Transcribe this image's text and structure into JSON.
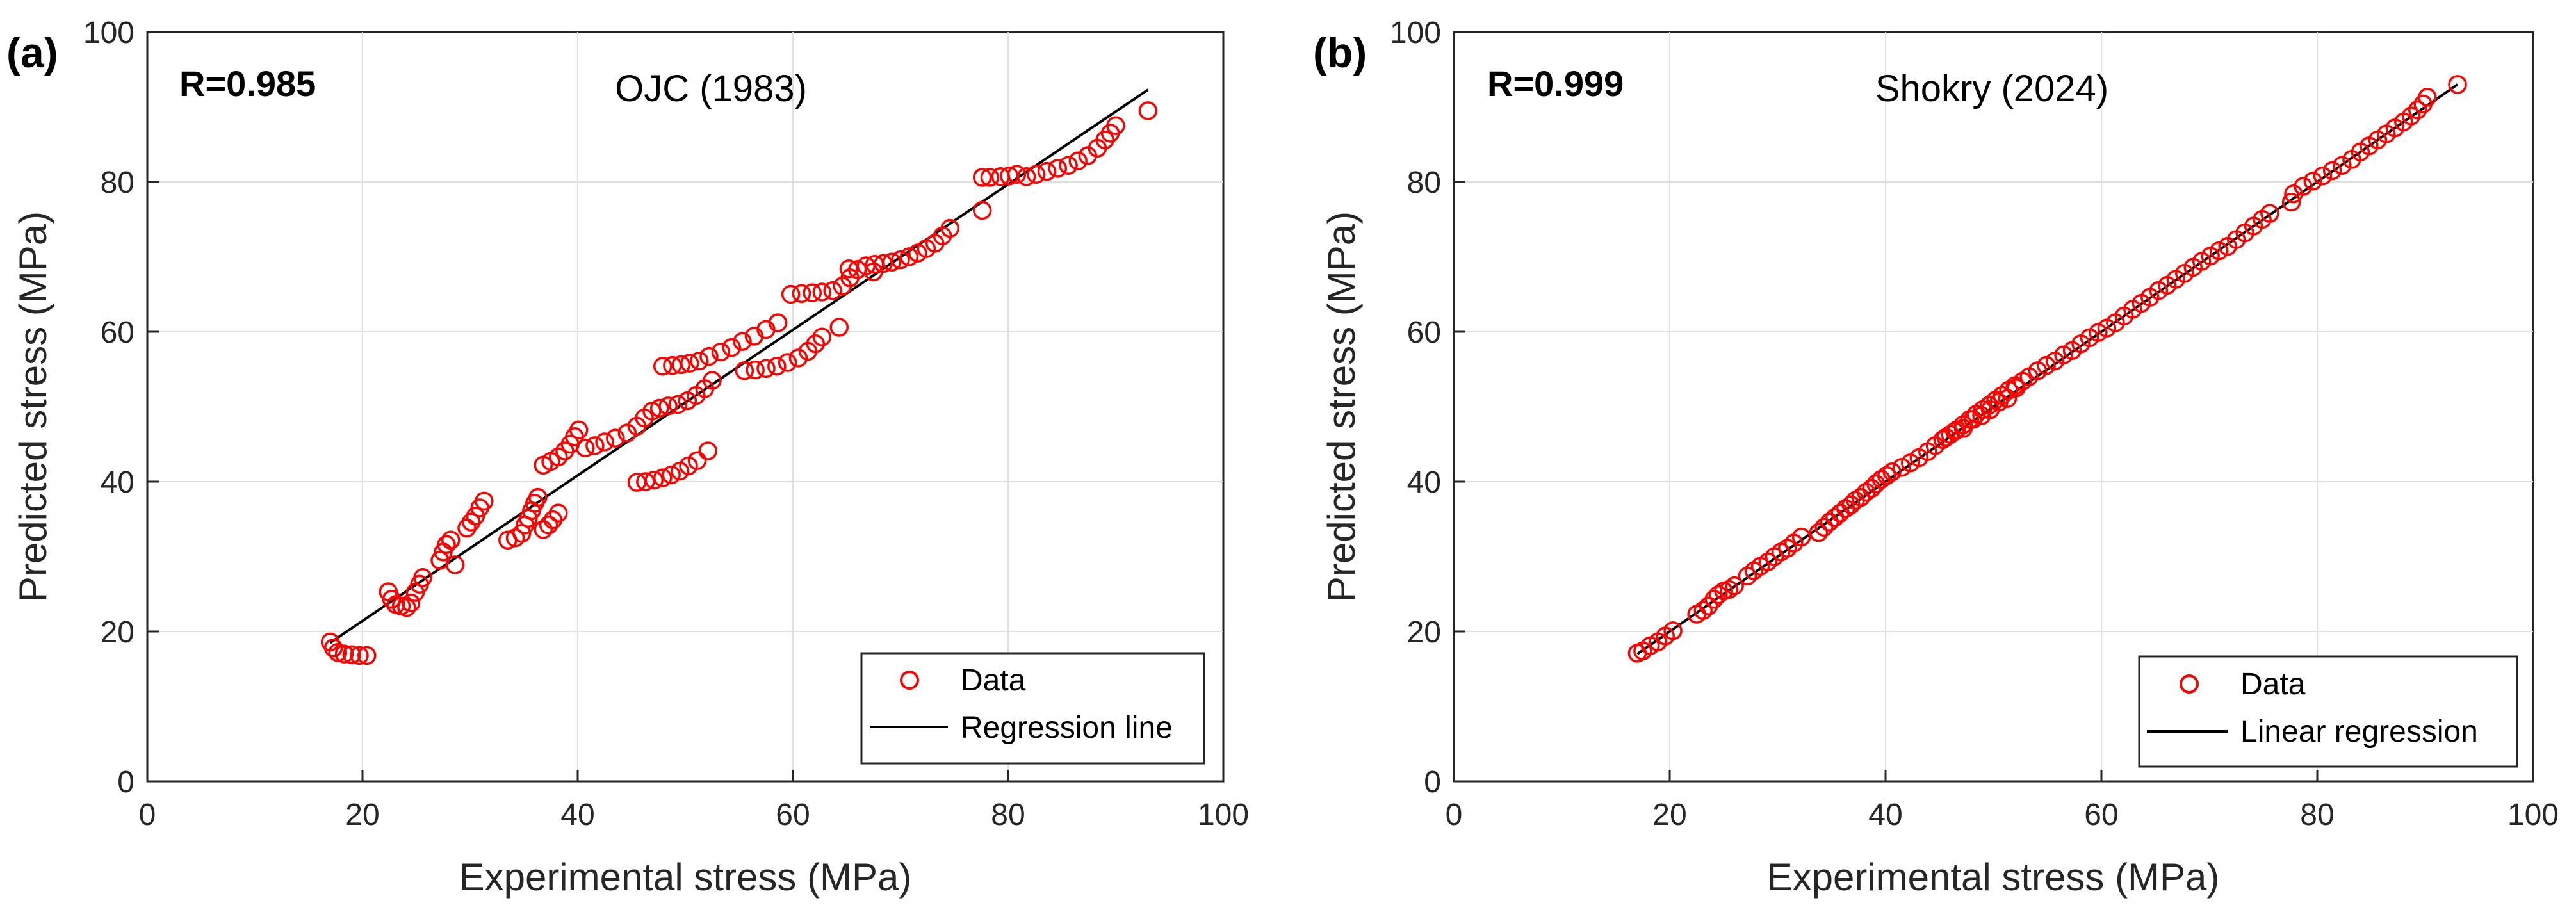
{
  "chart_data": [
    {
      "type": "scatter",
      "panel": "(a)",
      "title": "OJC (1983)",
      "r_label": "R=0.985",
      "xlabel": "Experimental stress (MPa)",
      "ylabel": "Predicted stress (MPa)",
      "xlim": [
        0,
        100
      ],
      "ylim": [
        0,
        100
      ],
      "xticks": [
        "0",
        "20",
        "40",
        "60",
        "80",
        "100"
      ],
      "yticks": [
        "0",
        "20",
        "40",
        "60",
        "80",
        "100"
      ],
      "grid": true,
      "legend_position": "bottom-right",
      "legend": [
        "Data",
        "Regression line"
      ],
      "marker_color": "#ff0000",
      "line_color": "#000000",
      "line": {
        "x": [
          17,
          93
        ],
        "y": [
          18.5,
          92.3
        ]
      },
      "points": [
        [
          17,
          18.6
        ],
        [
          17.3,
          17.8
        ],
        [
          17.7,
          17.2
        ],
        [
          18.3,
          17
        ],
        [
          19,
          16.9
        ],
        [
          19.7,
          16.8
        ],
        [
          20.4,
          16.8
        ],
        [
          22.4,
          25.3
        ],
        [
          22.7,
          24.3
        ],
        [
          23.1,
          23.6
        ],
        [
          23.6,
          23.4
        ],
        [
          24.1,
          23.2
        ],
        [
          24.5,
          23.8
        ],
        [
          24.9,
          25.2
        ],
        [
          25.3,
          26.3
        ],
        [
          25.6,
          27.2
        ],
        [
          27.2,
          29.5
        ],
        [
          27.5,
          30.6
        ],
        [
          27.8,
          31.6
        ],
        [
          28.2,
          32.2
        ],
        [
          28.6,
          28.9
        ],
        [
          29.7,
          33.8
        ],
        [
          30.1,
          34.6
        ],
        [
          30.5,
          35.4
        ],
        [
          30.9,
          36.5
        ],
        [
          31.3,
          37.4
        ],
        [
          33.5,
          32.2
        ],
        [
          34.2,
          32.5
        ],
        [
          34.8,
          33.1
        ],
        [
          35.1,
          34.2
        ],
        [
          35.4,
          35.1
        ],
        [
          35.7,
          36.1
        ],
        [
          36,
          37.1
        ],
        [
          36.3,
          37.9
        ],
        [
          36.8,
          33.6
        ],
        [
          37.3,
          34.2
        ],
        [
          37.7,
          34.9
        ],
        [
          38.2,
          35.8
        ],
        [
          36.8,
          42.2
        ],
        [
          37.5,
          42.7
        ],
        [
          38.2,
          43.3
        ],
        [
          38.8,
          44.1
        ],
        [
          39.3,
          45
        ],
        [
          39.7,
          46
        ],
        [
          40.1,
          46.9
        ],
        [
          40.7,
          44.5
        ],
        [
          41.6,
          44.8
        ],
        [
          42.5,
          45.3
        ],
        [
          43.5,
          45.8
        ],
        [
          44.6,
          46.5
        ],
        [
          45.5,
          47.4
        ],
        [
          46.2,
          48.5
        ],
        [
          46.9,
          49.4
        ],
        [
          47.6,
          49.8
        ],
        [
          48.4,
          50.1
        ],
        [
          49.3,
          50.3
        ],
        [
          50.2,
          50.8
        ],
        [
          51,
          51.5
        ],
        [
          51.8,
          52.4
        ],
        [
          52.5,
          53.5
        ],
        [
          45.5,
          39.9
        ],
        [
          46.3,
          40
        ],
        [
          47.1,
          40.2
        ],
        [
          47.9,
          40.5
        ],
        [
          48.7,
          40.9
        ],
        [
          49.5,
          41.4
        ],
        [
          50.3,
          42.1
        ],
        [
          51.1,
          42.8
        ],
        [
          52.1,
          44.1
        ],
        [
          47.9,
          55.4
        ],
        [
          48.8,
          55.5
        ],
        [
          49.6,
          55.6
        ],
        [
          50.4,
          55.8
        ],
        [
          51.3,
          56.1
        ],
        [
          52.2,
          56.7
        ],
        [
          53.3,
          57.3
        ],
        [
          54.3,
          57.9
        ],
        [
          55.3,
          58.7
        ],
        [
          56.4,
          59.4
        ],
        [
          57.5,
          60.3
        ],
        [
          58.6,
          61.2
        ],
        [
          55.5,
          54.8
        ],
        [
          56.5,
          54.9
        ],
        [
          57.5,
          55.1
        ],
        [
          58.5,
          55.4
        ],
        [
          59.5,
          55.9
        ],
        [
          60.5,
          56.5
        ],
        [
          61.4,
          57.4
        ],
        [
          62.1,
          58.4
        ],
        [
          62.7,
          59.3
        ],
        [
          59.8,
          65
        ],
        [
          60.8,
          65.1
        ],
        [
          61.8,
          65.2
        ],
        [
          62.7,
          65.3
        ],
        [
          63.7,
          65.5
        ],
        [
          64.6,
          66.1
        ],
        [
          65.3,
          67.2
        ],
        [
          66,
          68.3
        ],
        [
          66.8,
          68.8
        ],
        [
          67.6,
          69
        ],
        [
          68.4,
          69.1
        ],
        [
          69.2,
          69.3
        ],
        [
          70,
          69.6
        ],
        [
          70.8,
          70
        ],
        [
          71.6,
          70.5
        ],
        [
          72.4,
          71.1
        ],
        [
          73.2,
          71.8
        ],
        [
          73.9,
          72.8
        ],
        [
          74.6,
          73.8
        ],
        [
          64.3,
          60.6
        ],
        [
          65.2,
          68.4
        ],
        [
          67.5,
          68
        ],
        [
          77.6,
          76.2
        ],
        [
          77.6,
          80.6
        ],
        [
          78.3,
          80.6
        ],
        [
          79.3,
          80.7
        ],
        [
          80.1,
          80.8
        ],
        [
          80.8,
          81
        ],
        [
          81.7,
          80.7
        ],
        [
          82.6,
          81
        ],
        [
          83.6,
          81.4
        ],
        [
          84.6,
          81.8
        ],
        [
          85.6,
          82.2
        ],
        [
          86.5,
          82.8
        ],
        [
          87.4,
          83.5
        ],
        [
          88.3,
          84.5
        ],
        [
          89,
          85.6
        ],
        [
          89.5,
          86.5
        ],
        [
          90,
          87.5
        ],
        [
          93,
          89.5
        ]
      ]
    },
    {
      "type": "scatter",
      "panel": "(b)",
      "title": "Shokry (2024)",
      "r_label": "R=0.999",
      "xlabel": "Experimental stress (MPa)",
      "ylabel": "Predicted stress (MPa)",
      "xlim": [
        0,
        100
      ],
      "ylim": [
        0,
        100
      ],
      "xticks": [
        "0",
        "20",
        "40",
        "60",
        "80",
        "100"
      ],
      "yticks": [
        "0",
        "20",
        "40",
        "60",
        "80",
        "100"
      ],
      "grid": true,
      "legend_position": "bottom-right",
      "legend": [
        "Data",
        "Linear regression"
      ],
      "marker_color": "#ff0000",
      "line_color": "#000000",
      "line": {
        "x": [
          17,
          93
        ],
        "y": [
          17,
          93
        ]
      },
      "points": [
        [
          17,
          17.1
        ],
        [
          17.5,
          17.4
        ],
        [
          18.2,
          18.1
        ],
        [
          18.9,
          18.6
        ],
        [
          19.6,
          19.4
        ],
        [
          20.3,
          20.1
        ],
        [
          22.5,
          22.3
        ],
        [
          23.1,
          22.8
        ],
        [
          23.6,
          23.4
        ],
        [
          24.1,
          24.3
        ],
        [
          24.5,
          24.9
        ],
        [
          25,
          25.4
        ],
        [
          25.5,
          25.6
        ],
        [
          26,
          26.1
        ],
        [
          27.2,
          27.4
        ],
        [
          27.8,
          28.1
        ],
        [
          28.4,
          28.7
        ],
        [
          29.1,
          29.3
        ],
        [
          29.7,
          30
        ],
        [
          30.3,
          30.6
        ],
        [
          30.9,
          31.1
        ],
        [
          31.5,
          31.8
        ],
        [
          32.2,
          32.6
        ],
        [
          33.8,
          33.2
        ],
        [
          34.3,
          33.9
        ],
        [
          34.8,
          34.6
        ],
        [
          35.3,
          35.2
        ],
        [
          35.8,
          35.8
        ],
        [
          36.3,
          36.4
        ],
        [
          36.8,
          36.9
        ],
        [
          37.2,
          37.5
        ],
        [
          37.7,
          37.9
        ],
        [
          38.2,
          38.6
        ],
        [
          38.7,
          39.1
        ],
        [
          39.1,
          39.7
        ],
        [
          39.6,
          40.3
        ],
        [
          40.1,
          40.8
        ],
        [
          40.6,
          41.3
        ],
        [
          41.5,
          41.9
        ],
        [
          42.3,
          42.5
        ],
        [
          43.1,
          43.2
        ],
        [
          43.9,
          44
        ],
        [
          44.6,
          44.8
        ],
        [
          45.3,
          45.6
        ],
        [
          46,
          46.3
        ],
        [
          46.6,
          46.9
        ],
        [
          47.2,
          47.6
        ],
        [
          47.8,
          48.3
        ],
        [
          48.4,
          49
        ],
        [
          49,
          49.6
        ],
        [
          49.6,
          50.2
        ],
        [
          50.2,
          50.9
        ],
        [
          50.8,
          51.5
        ],
        [
          51.4,
          52.2
        ],
        [
          52,
          52.8
        ],
        [
          52.7,
          53.4
        ],
        [
          45.6,
          45.9
        ],
        [
          46.4,
          46.7
        ],
        [
          47.2,
          47.1
        ],
        [
          48.1,
          48.3
        ],
        [
          48.9,
          48.8
        ],
        [
          49.7,
          49.6
        ],
        [
          50.5,
          50.6
        ],
        [
          51.3,
          51.1
        ],
        [
          52.1,
          52.5
        ],
        [
          53.3,
          54
        ],
        [
          54.1,
          54.8
        ],
        [
          54.9,
          55.5
        ],
        [
          55.7,
          56.1
        ],
        [
          56.5,
          56.9
        ],
        [
          57.3,
          57.5
        ],
        [
          58.1,
          58.4
        ],
        [
          58.9,
          59.2
        ],
        [
          59.7,
          59.9
        ],
        [
          60.5,
          60.5
        ],
        [
          61.3,
          61.2
        ],
        [
          62.1,
          62.1
        ],
        [
          62.9,
          63
        ],
        [
          63.7,
          63.8
        ],
        [
          64.5,
          64.6
        ],
        [
          65.3,
          65.5
        ],
        [
          66.1,
          66.2
        ],
        [
          66.9,
          67
        ],
        [
          67.7,
          67.8
        ],
        [
          68.5,
          68.6
        ],
        [
          69.3,
          69.4
        ],
        [
          70.1,
          70.1
        ],
        [
          70.9,
          70.8
        ],
        [
          71.7,
          71.4
        ],
        [
          72.5,
          72.3
        ],
        [
          73.3,
          73.2
        ],
        [
          74.1,
          74.1
        ],
        [
          74.9,
          75
        ],
        [
          75.6,
          75.8
        ],
        [
          77.6,
          77.3
        ],
        [
          77.8,
          78.4
        ],
        [
          78.7,
          79.4
        ],
        [
          79.6,
          80.1
        ],
        [
          80.5,
          80.8
        ],
        [
          81.4,
          81.5
        ],
        [
          82.3,
          82.2
        ],
        [
          83.2,
          83
        ],
        [
          84,
          84
        ],
        [
          84.8,
          84.8
        ],
        [
          85.6,
          85.6
        ],
        [
          86.4,
          86.4
        ],
        [
          87.2,
          87.2
        ],
        [
          88,
          88
        ],
        [
          88.7,
          88.8
        ],
        [
          89.3,
          89.6
        ],
        [
          89.8,
          90.4
        ],
        [
          90.2,
          91.3
        ],
        [
          93,
          93
        ]
      ]
    }
  ]
}
